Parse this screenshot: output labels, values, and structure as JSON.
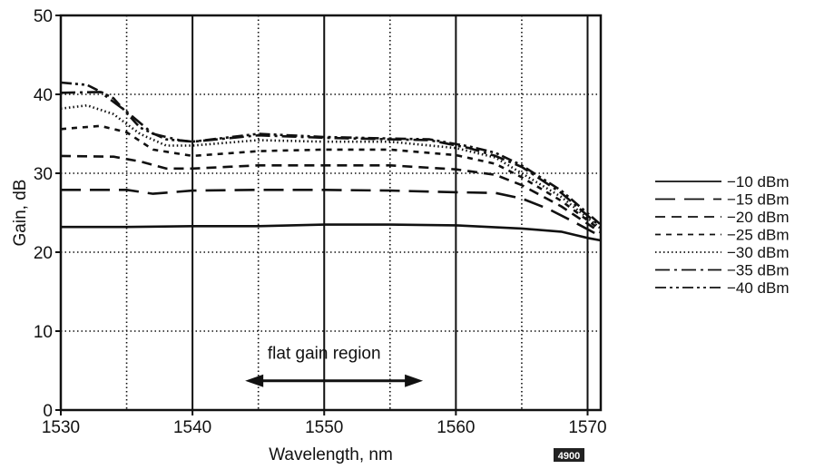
{
  "chart_data": {
    "type": "line",
    "title": "",
    "xlabel": "Wavelength, nm",
    "ylabel": "Gain, dB",
    "xlim": [
      1530,
      1571
    ],
    "ylim": [
      0,
      50
    ],
    "xticks": [
      1530,
      1540,
      1550,
      1560,
      1570
    ],
    "yticks": [
      0,
      10,
      20,
      30,
      40,
      50
    ],
    "xtick_labels": [
      "1530",
      "1540",
      "1550",
      "1560",
      "1570"
    ],
    "ytick_labels": [
      "0",
      "10",
      "20",
      "30",
      "40",
      "50"
    ],
    "grid": true,
    "legend_position": "right",
    "annotation": {
      "text": "flat gain region",
      "arrow_from": [
        1544,
        3.7
      ],
      "arrow_to": [
        1557.5,
        3.7
      ],
      "text_pos": [
        1550,
        6.5
      ]
    },
    "stamp_text": "4900",
    "series": [
      {
        "name": "−10 dBm",
        "dash": "solid",
        "x": [
          1530,
          1535,
          1540,
          1545,
          1550,
          1555,
          1560,
          1565,
          1568,
          1570,
          1571
        ],
        "y": [
          23.2,
          23.2,
          23.3,
          23.3,
          23.5,
          23.5,
          23.4,
          23.0,
          22.6,
          21.8,
          21.5
        ]
      },
      {
        "name": "−15 dBm",
        "dash": "longdash",
        "x": [
          1530,
          1535,
          1537,
          1540,
          1545,
          1550,
          1555,
          1560,
          1563,
          1565,
          1567,
          1569,
          1571
        ],
        "y": [
          27.9,
          27.9,
          27.4,
          27.8,
          27.9,
          27.9,
          27.8,
          27.6,
          27.5,
          26.8,
          25.5,
          23.8,
          22.0
        ]
      },
      {
        "name": "−20 dBm",
        "dash": "dash",
        "x": [
          1530,
          1534,
          1536,
          1538,
          1540,
          1545,
          1550,
          1555,
          1560,
          1563,
          1565,
          1568,
          1571
        ],
        "y": [
          32.2,
          32.1,
          31.5,
          30.6,
          30.6,
          31.0,
          31.0,
          31.0,
          30.5,
          29.8,
          28.5,
          25.8,
          22.5
        ]
      },
      {
        "name": "−25 dBm",
        "dash": "shortdash",
        "x": [
          1530,
          1533,
          1535,
          1537,
          1540,
          1545,
          1550,
          1555,
          1560,
          1563,
          1565,
          1568,
          1571
        ],
        "y": [
          35.6,
          36.0,
          35.2,
          33.0,
          32.2,
          32.8,
          33.0,
          33.0,
          32.3,
          31.2,
          29.5,
          26.5,
          22.8
        ]
      },
      {
        "name": "−30 dBm",
        "dash": "dot",
        "x": [
          1530,
          1532,
          1534,
          1536,
          1538,
          1540,
          1545,
          1550,
          1555,
          1560,
          1563,
          1565,
          1568,
          1571
        ],
        "y": [
          38.2,
          38.6,
          37.5,
          35.0,
          33.5,
          33.5,
          34.2,
          34.0,
          34.0,
          33.2,
          32.0,
          30.0,
          27.0,
          23.0
        ]
      },
      {
        "name": "−35 dBm",
        "dash": "dashdot",
        "x": [
          1530,
          1533,
          1535,
          1537,
          1539,
          1540,
          1545,
          1550,
          1555,
          1558,
          1561,
          1563,
          1565,
          1568,
          1571
        ],
        "y": [
          40.2,
          40.3,
          37.8,
          35.0,
          34.2,
          34.0,
          34.8,
          34.5,
          34.3,
          34.2,
          33.2,
          32.2,
          30.8,
          27.5,
          23.2
        ]
      },
      {
        "name": "−40 dBm",
        "dash": "dashdotdot",
        "x": [
          1530,
          1532,
          1534,
          1536,
          1538,
          1540,
          1545,
          1550,
          1555,
          1558,
          1561,
          1563,
          1565,
          1568,
          1571
        ],
        "y": [
          41.5,
          41.2,
          39.5,
          35.8,
          34.3,
          34.0,
          35.0,
          34.6,
          34.4,
          34.3,
          33.4,
          32.6,
          31.0,
          27.8,
          23.5
        ]
      }
    ]
  }
}
